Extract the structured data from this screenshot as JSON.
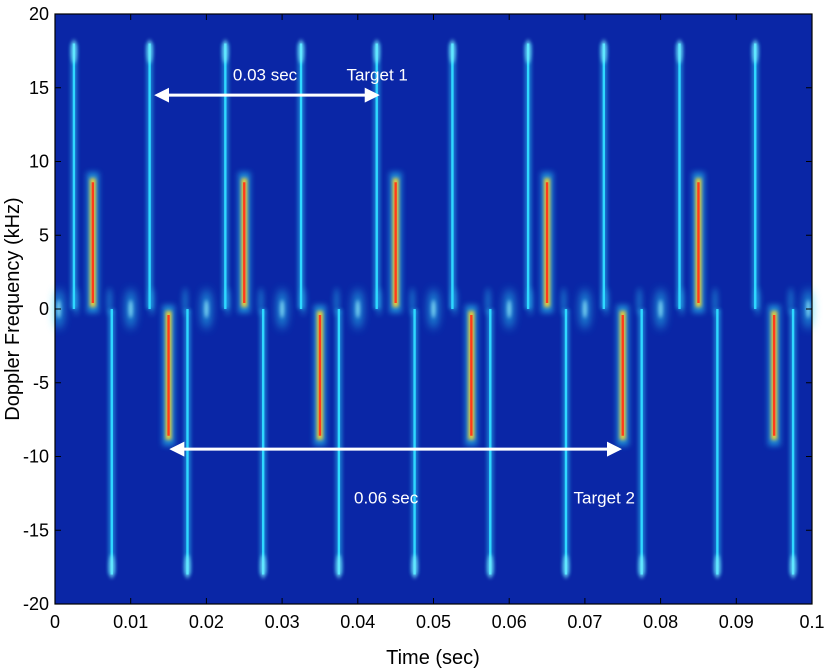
{
  "chart_data": {
    "type": "heatmap",
    "title": "",
    "xlabel": "Time (sec)",
    "ylabel": "Doppler Frequency (kHz)",
    "xlim": [
      0,
      0.1
    ],
    "ylim": [
      -20,
      20
    ],
    "x_ticks": [
      0,
      0.01,
      0.02,
      0.03,
      0.04,
      0.05,
      0.06,
      0.07,
      0.08,
      0.09,
      0.1
    ],
    "x_tick_labels": [
      "0",
      "0.01",
      "0.02",
      "0.03",
      "0.04",
      "0.05",
      "0.06",
      "0.07",
      "0.08",
      "0.09",
      "0.1"
    ],
    "y_ticks": [
      20,
      15,
      10,
      5,
      0,
      -5,
      -10,
      -15,
      -20
    ],
    "y_tick_labels": [
      "20",
      "15",
      "10",
      "5",
      "0",
      "-5",
      "-10",
      "-15",
      "-20"
    ],
    "grid": false,
    "colormap": "jet",
    "colors": {
      "background": "#0a26a6",
      "faint_line": "#2fd8ff",
      "hot_core": "#ff3b1a",
      "warm_band": "#ffd428",
      "annotation": "#ffffff"
    },
    "series": [
      {
        "kind": "faint-flash-up",
        "x": [
          0.0025,
          0.0125,
          0.0225,
          0.0325,
          0.0425,
          0.0525,
          0.0625,
          0.0725,
          0.0825,
          0.0925
        ],
        "y_range": [
          0,
          18
        ]
      },
      {
        "kind": "faint-flash-down",
        "x": [
          0.0075,
          0.0175,
          0.0275,
          0.0375,
          0.0475,
          0.0575,
          0.0675,
          0.0775,
          0.0875,
          0.0975
        ],
        "y_range": [
          -18,
          0
        ]
      },
      {
        "kind": "strong-flash-up",
        "x": [
          0.005,
          0.025,
          0.045,
          0.065,
          0.085
        ],
        "y_range": [
          0,
          9
        ]
      },
      {
        "kind": "strong-flash-down",
        "x": [
          0.015,
          0.035,
          0.055,
          0.075,
          0.095
        ],
        "y_range": [
          -9,
          0
        ]
      },
      {
        "kind": "body-blob",
        "x": [
          0.0005,
          0.01,
          0.02,
          0.03,
          0.04,
          0.05,
          0.06,
          0.07,
          0.08,
          0.0995
        ],
        "y_range": [
          -3,
          3
        ]
      }
    ],
    "annotations": [
      {
        "text": "0.03 sec",
        "x": 0.0235,
        "y": 15.5
      },
      {
        "text": "Target 1",
        "x": 0.0385,
        "y": 15.5
      },
      {
        "text": "0.06 sec",
        "x": 0.0395,
        "y": -13.2
      },
      {
        "text": "Target 2",
        "x": 0.0685,
        "y": -13.2
      }
    ],
    "arrows": [
      {
        "x_start": 0.0135,
        "x_end": 0.0425,
        "y": 14.5,
        "label": "0.03 sec"
      },
      {
        "x_start": 0.0155,
        "x_end": 0.0745,
        "y": -9.5,
        "label": "0.06 sec"
      }
    ]
  }
}
